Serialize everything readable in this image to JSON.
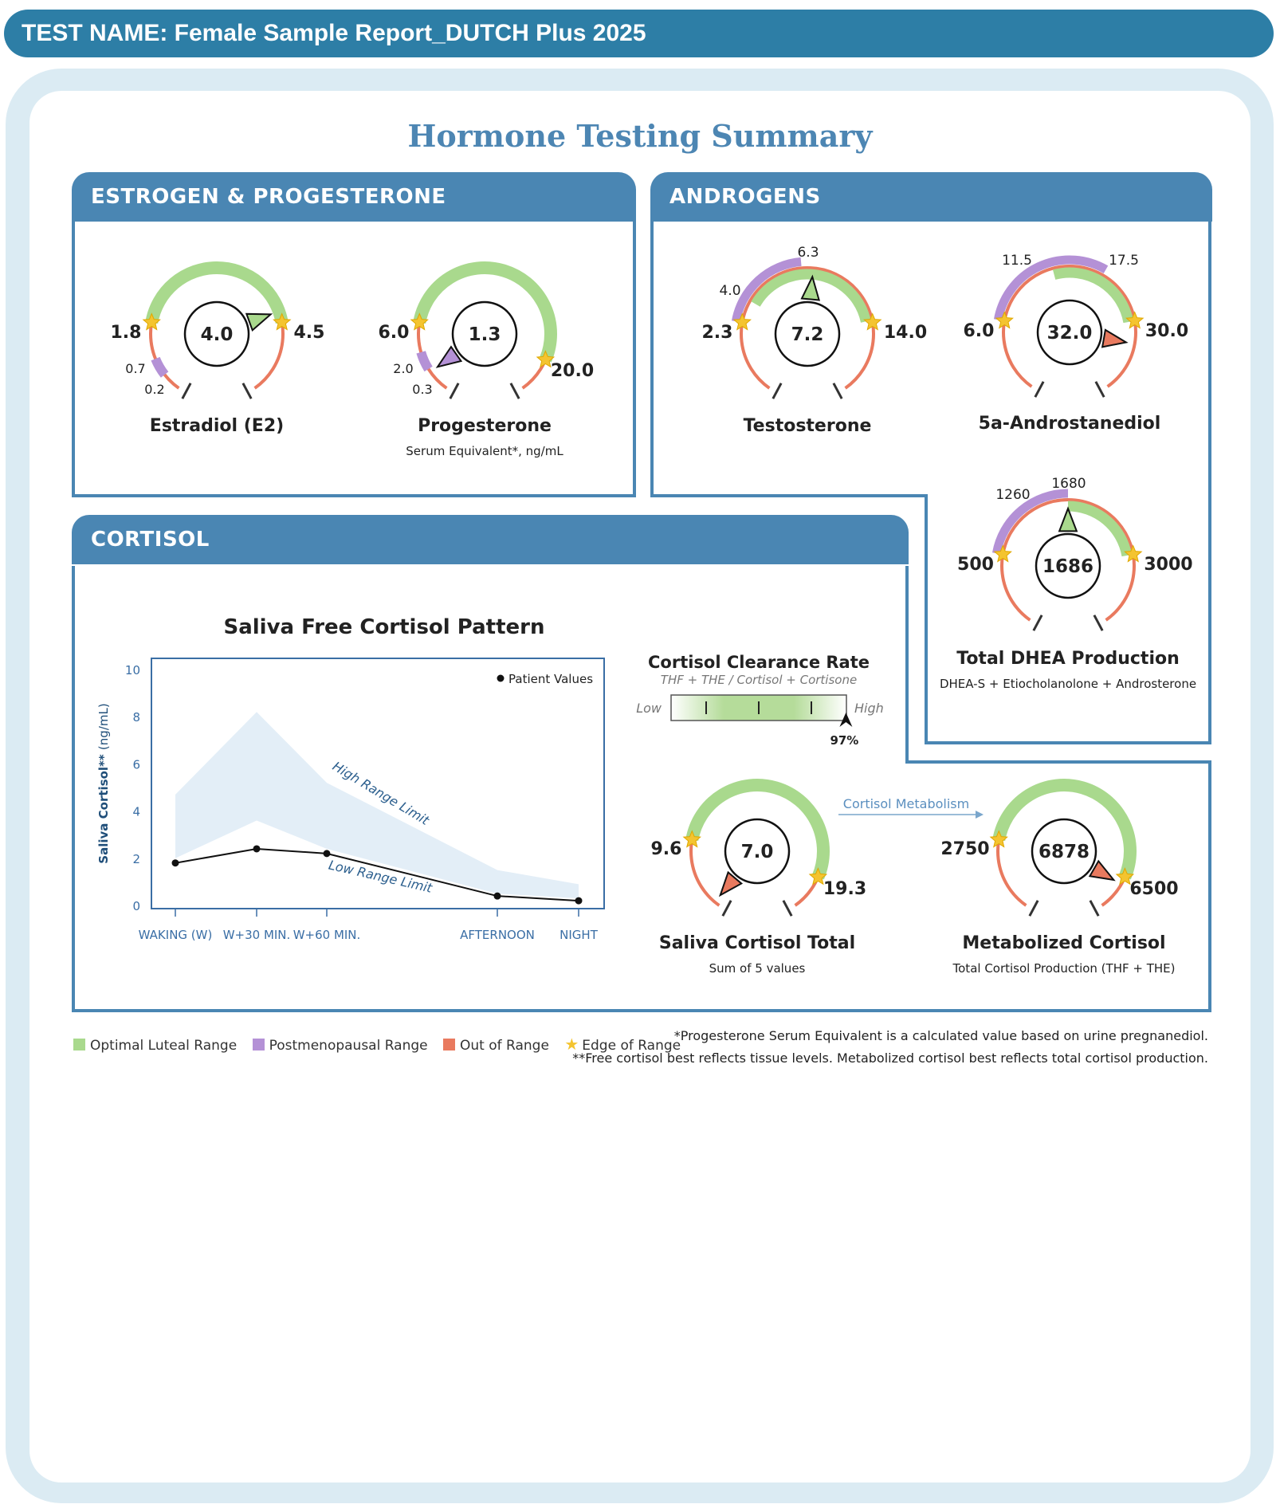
{
  "header": {
    "title": "TEST NAME: Female Sample Report_DUTCH Plus 2025"
  },
  "page": {
    "title": "Hormone Testing Summary"
  },
  "panels": {
    "estrogen": "ESTROGEN & PROGESTERONE",
    "androgens": "ANDROGENS",
    "cortisol": "CORTISOL"
  },
  "gauges": {
    "estradiol": {
      "name": "Estradiol (E2)",
      "subtitle": "",
      "value": "4.0",
      "low": "1.8",
      "high": "4.5",
      "alt_high": "0.7",
      "alt_low": "0.2"
    },
    "progesterone": {
      "name": "Progesterone",
      "subtitle": "Serum Equivalent*, ng/mL",
      "value": "1.3",
      "low": "6.0",
      "high": "20.0",
      "alt_high": "2.0",
      "alt_low": "0.3"
    },
    "testosterone": {
      "name": "Testosterone",
      "subtitle": "",
      "value": "7.2",
      "low": "2.3",
      "high": "14.0",
      "alt_low": "4.0",
      "alt_high": "6.3"
    },
    "androstanediol": {
      "name": "5a-Androstanediol",
      "subtitle": "",
      "value": "32.0",
      "low": "6.0",
      "high": "30.0",
      "alt_low": "11.5",
      "alt_high": "17.5"
    },
    "dhea": {
      "name": "Total DHEA Production",
      "subtitle": "DHEA-S + Etiocholanolone + Androsterone",
      "value": "1686",
      "low": "500",
      "high": "3000",
      "alt_low": "1260",
      "alt_high": "1680"
    },
    "saliva_total": {
      "name": "Saliva Cortisol Total",
      "subtitle": "Sum of 5 values",
      "value": "7.0",
      "low": "9.6",
      "high": "19.3"
    },
    "metabolized": {
      "name": "Metabolized Cortisol",
      "subtitle": "Total Cortisol Production (THF + THE)",
      "value": "6878",
      "low": "2750",
      "high": "6500"
    }
  },
  "clearance": {
    "title": "Cortisol Clearance Rate",
    "subtitle": "THF + THE / Cortisol + Cortisone",
    "low_label": "Low",
    "high_label": "High",
    "percent_label": "97%",
    "percent": 97
  },
  "metabolism_arrow": "Cortisol Metabolism",
  "chart_data": {
    "type": "line",
    "title": "Saliva Free Cortisol Pattern",
    "ylabel": "Saliva Cortisol**",
    "yunit": "(ng/mL)",
    "ylim": [
      0,
      10
    ],
    "yticks": [
      "0",
      "2",
      "4",
      "6",
      "8",
      "10"
    ],
    "categories": [
      "WAKING (W)",
      "W+30 MIN.",
      "W+60 MIN.",
      "AFTERNOON",
      "NIGHT"
    ],
    "x": [
      0,
      1,
      2,
      4,
      5
    ],
    "series": [
      {
        "name": "Patient Values",
        "values": [
          1.8,
          2.4,
          2.2,
          0.4,
          0.2
        ]
      },
      {
        "name": "High Range Limit",
        "values": [
          4.7,
          8.2,
          5.2,
          1.5,
          0.9
        ]
      },
      {
        "name": "Low Range Limit",
        "values": [
          2.0,
          3.6,
          2.4,
          0.5,
          0.3
        ]
      }
    ],
    "legend": "Patient Values",
    "band_labels": {
      "high": "High Range Limit",
      "low": "Low Range Limit"
    }
  },
  "legend": {
    "optimal": "Optimal Luteal Range",
    "postmenopausal": "Postmenopausal Range",
    "out_of_range": "Out of Range",
    "edge": "Edge of Range"
  },
  "footnotes": {
    "note1": "*Progesterone Serum Equivalent is a calculated value based on urine pregnanediol.",
    "note2": "**Free cortisol best reflects tissue levels. Metabolized cortisol best reflects total cortisol production."
  },
  "colors": {
    "green": "#a9d98d",
    "purple": "#b491d6",
    "red": "#e97a5f",
    "star": "#f4c430",
    "blue": "#4a86b3"
  }
}
